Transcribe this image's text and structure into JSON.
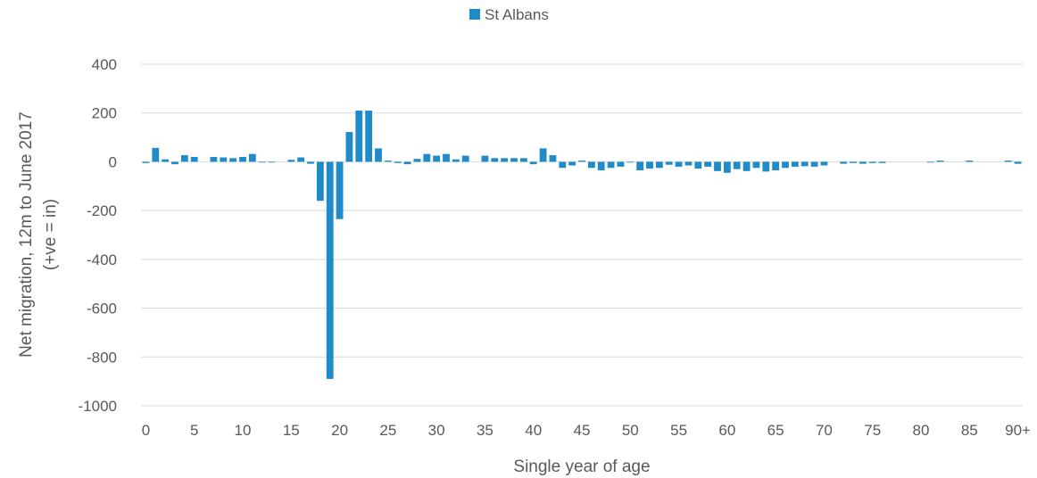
{
  "chart_data": {
    "type": "bar",
    "title": "",
    "xlabel": "Single year of age",
    "ylabel": "Net migration, 12m to June 2017",
    "ylabel_line2": "(+ve = in)",
    "ylim": [
      -1000,
      400
    ],
    "y_ticks": [
      400,
      200,
      0,
      -200,
      -400,
      -600,
      -800,
      -1000
    ],
    "x_tick_labels": [
      "0",
      "5",
      "10",
      "15",
      "20",
      "25",
      "30",
      "35",
      "40",
      "45",
      "50",
      "55",
      "60",
      "65",
      "70",
      "75",
      "80",
      "85",
      "90+"
    ],
    "legend_position": "top",
    "grid": true,
    "bar_color": "#1f8bc9",
    "categories": [
      "0",
      "1",
      "2",
      "3",
      "4",
      "5",
      "6",
      "7",
      "8",
      "9",
      "10",
      "11",
      "12",
      "13",
      "14",
      "15",
      "16",
      "17",
      "18",
      "19",
      "20",
      "21",
      "22",
      "23",
      "24",
      "25",
      "26",
      "27",
      "28",
      "29",
      "30",
      "31",
      "32",
      "33",
      "34",
      "35",
      "36",
      "37",
      "38",
      "39",
      "40",
      "41",
      "42",
      "43",
      "44",
      "45",
      "46",
      "47",
      "48",
      "49",
      "50",
      "51",
      "52",
      "53",
      "54",
      "55",
      "56",
      "57",
      "58",
      "59",
      "60",
      "61",
      "62",
      "63",
      "64",
      "65",
      "66",
      "67",
      "68",
      "69",
      "70",
      "71",
      "72",
      "73",
      "74",
      "75",
      "76",
      "77",
      "78",
      "79",
      "80",
      "81",
      "82",
      "83",
      "84",
      "85",
      "86",
      "87",
      "88",
      "89",
      "90+"
    ],
    "series": [
      {
        "name": "St Albans",
        "values": [
          -5,
          57,
          10,
          -10,
          27,
          20,
          0,
          20,
          18,
          15,
          20,
          32,
          -3,
          -2,
          0,
          8,
          18,
          -8,
          -160,
          -890,
          -235,
          122,
          210,
          210,
          55,
          5,
          -5,
          -10,
          12,
          32,
          25,
          32,
          10,
          25,
          0,
          25,
          15,
          15,
          15,
          15,
          -10,
          55,
          27,
          -25,
          -15,
          5,
          -25,
          -35,
          -25,
          -20,
          -3,
          -35,
          -28,
          -25,
          -12,
          -20,
          -15,
          -28,
          -20,
          -38,
          -45,
          -30,
          -38,
          -25,
          -40,
          -35,
          -25,
          -20,
          -18,
          -20,
          -15,
          0,
          -8,
          -5,
          -8,
          -5,
          -5,
          0,
          0,
          0,
          0,
          -2,
          5,
          0,
          0,
          5,
          0,
          0,
          0,
          5,
          -8
        ]
      }
    ]
  }
}
